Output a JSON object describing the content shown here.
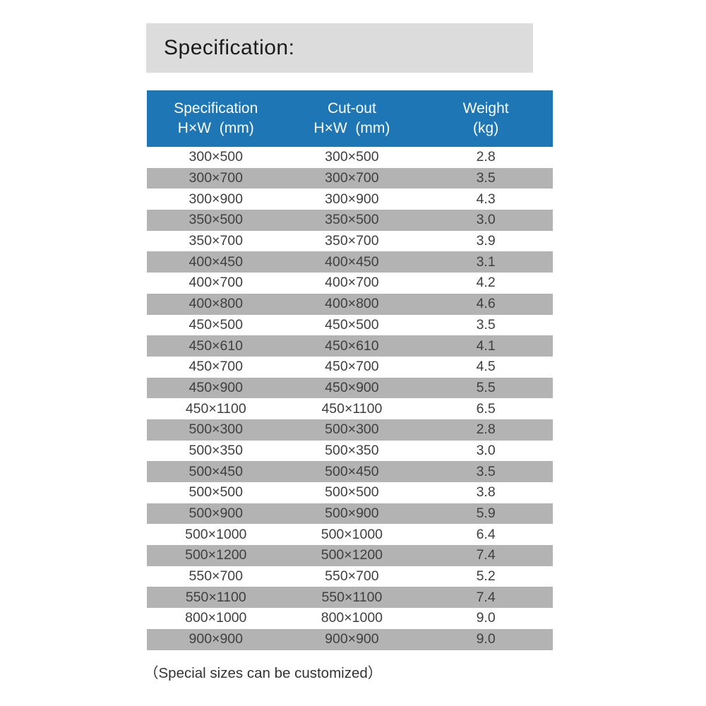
{
  "page": {
    "title": "Specification:",
    "note": "（Special sizes can be customized）"
  },
  "colors": {
    "header_bg": "#1e76b4",
    "header_text": "#ffffff",
    "alt_row_bg": "#b3b3b3",
    "title_bg": "#dcdcdc",
    "cell_text": "#3f3f3f"
  },
  "table": {
    "columns": [
      {
        "line1": "Specification",
        "line2": "H×W  (mm)"
      },
      {
        "line1": "Cut-out",
        "line2": "H×W  (mm)"
      },
      {
        "line1": "Weight",
        "line2": "(kg)"
      }
    ],
    "rows": [
      {
        "spec": "300×500",
        "cutout": "300×500",
        "weight": "2.8"
      },
      {
        "spec": "300×700",
        "cutout": "300×700",
        "weight": "3.5"
      },
      {
        "spec": "300×900",
        "cutout": "300×900",
        "weight": "4.3"
      },
      {
        "spec": "350×500",
        "cutout": "350×500",
        "weight": "3.0"
      },
      {
        "spec": "350×700",
        "cutout": "350×700",
        "weight": "3.9"
      },
      {
        "spec": "400×450",
        "cutout": "400×450",
        "weight": "3.1"
      },
      {
        "spec": "400×700",
        "cutout": "400×700",
        "weight": "4.2"
      },
      {
        "spec": "400×800",
        "cutout": "400×800",
        "weight": "4.6"
      },
      {
        "spec": "450×500",
        "cutout": "450×500",
        "weight": "3.5"
      },
      {
        "spec": "450×610",
        "cutout": "450×610",
        "weight": "4.1"
      },
      {
        "spec": "450×700",
        "cutout": "450×700",
        "weight": "4.5"
      },
      {
        "spec": "450×900",
        "cutout": "450×900",
        "weight": "5.5"
      },
      {
        "spec": "450×1100",
        "cutout": "450×1100",
        "weight": "6.5"
      },
      {
        "spec": "500×300",
        "cutout": "500×300",
        "weight": "2.8"
      },
      {
        "spec": "500×350",
        "cutout": "500×350",
        "weight": "3.0"
      },
      {
        "spec": "500×450",
        "cutout": "500×450",
        "weight": "3.5"
      },
      {
        "spec": "500×500",
        "cutout": "500×500",
        "weight": "3.8"
      },
      {
        "spec": "500×900",
        "cutout": "500×900",
        "weight": "5.9"
      },
      {
        "spec": "500×1000",
        "cutout": "500×1000",
        "weight": "6.4"
      },
      {
        "spec": "500×1200",
        "cutout": "500×1200",
        "weight": "7.4"
      },
      {
        "spec": "550×700",
        "cutout": "550×700",
        "weight": "5.2"
      },
      {
        "spec": "550×1100",
        "cutout": "550×1100",
        "weight": "7.4"
      },
      {
        "spec": "800×1000",
        "cutout": "800×1000",
        "weight": "9.0"
      },
      {
        "spec": "900×900",
        "cutout": "900×900",
        "weight": "9.0"
      }
    ]
  },
  "chart_data": {
    "type": "table",
    "title": "Specification:",
    "columns": [
      "Specification H×W (mm)",
      "Cut-out H×W (mm)",
      "Weight (kg)"
    ],
    "rows": [
      [
        "300×500",
        "300×500",
        2.8
      ],
      [
        "300×700",
        "300×700",
        3.5
      ],
      [
        "300×900",
        "300×900",
        4.3
      ],
      [
        "350×500",
        "350×500",
        3.0
      ],
      [
        "350×700",
        "350×700",
        3.9
      ],
      [
        "400×450",
        "400×450",
        3.1
      ],
      [
        "400×700",
        "400×700",
        4.2
      ],
      [
        "400×800",
        "400×800",
        4.6
      ],
      [
        "450×500",
        "450×500",
        3.5
      ],
      [
        "450×610",
        "450×610",
        4.1
      ],
      [
        "450×700",
        "450×700",
        4.5
      ],
      [
        "450×900",
        "450×900",
        5.5
      ],
      [
        "450×1100",
        "450×1100",
        6.5
      ],
      [
        "500×300",
        "500×300",
        2.8
      ],
      [
        "500×350",
        "500×350",
        3.0
      ],
      [
        "500×450",
        "500×450",
        3.5
      ],
      [
        "500×500",
        "500×500",
        3.8
      ],
      [
        "500×900",
        "500×900",
        5.9
      ],
      [
        "500×1000",
        "500×1000",
        6.4
      ],
      [
        "500×1200",
        "500×1200",
        7.4
      ],
      [
        "550×700",
        "550×700",
        5.2
      ],
      [
        "550×1100",
        "550×1100",
        7.4
      ],
      [
        "800×1000",
        "800×1000",
        9.0
      ],
      [
        "900×900",
        "900×900",
        9.0
      ]
    ],
    "footnote": "（Special sizes can be customized）"
  }
}
